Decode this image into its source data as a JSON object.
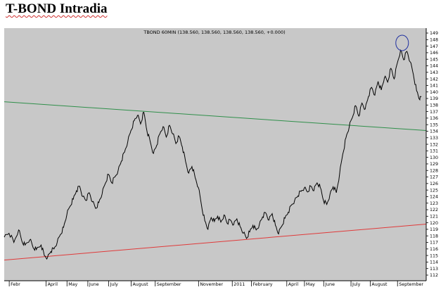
{
  "page": {
    "title": "T-BOND Intradia"
  },
  "chart_data": {
    "type": "line",
    "title": "TBOND 60MIN (138.560, 138.560, 138.560, 138.560, +0.000)",
    "symbol": "TBOND",
    "interval": "60MIN",
    "ylim": [
      112,
      149
    ],
    "y_ticks": [
      "112",
      "113",
      "114",
      "115",
      "116",
      "117",
      "118",
      "119",
      "120",
      "121",
      "122",
      "123",
      "124",
      "125",
      "126",
      "127",
      "128",
      "129",
      "130",
      "131",
      "132",
      "133",
      "134",
      "135",
      "136",
      "137",
      "138",
      "139",
      "140",
      "141",
      "142",
      "143",
      "144",
      "145",
      "146",
      "147",
      "148",
      "149"
    ],
    "x_ticks": [
      {
        "label": "Febr",
        "t": 0.4
      },
      {
        "label": "April",
        "t": 2.7
      },
      {
        "label": "May",
        "t": 4.0
      },
      {
        "label": "June",
        "t": 5.3
      },
      {
        "label": "July",
        "t": 6.6
      },
      {
        "label": "August",
        "t": 8.0
      },
      {
        "label": "September",
        "t": 9.5
      },
      {
        "label": "November",
        "t": 12.2
      },
      {
        "label": "2011",
        "t": 14.3
      },
      {
        "label": "February",
        "t": 15.5
      },
      {
        "label": "April",
        "t": 17.7
      },
      {
        "label": "May",
        "t": 18.8
      },
      {
        "label": "June",
        "t": 20.0
      },
      {
        "label": "July",
        "t": 21.7
      },
      {
        "label": "August",
        "t": 22.9
      },
      {
        "label": "September",
        "t": 24.6
      }
    ],
    "x_range": [
      0,
      26.3
    ],
    "series": [
      {
        "color": "#000000",
        "points": [
          [
            0.0,
            117.8
          ],
          [
            0.3,
            118.4
          ],
          [
            0.6,
            117.0
          ],
          [
            0.9,
            118.9
          ],
          [
            1.1,
            117.2
          ],
          [
            1.3,
            116.6
          ],
          [
            1.6,
            117.4
          ],
          [
            1.8,
            116.2
          ],
          [
            2.0,
            115.9
          ],
          [
            2.3,
            116.6
          ],
          [
            2.5,
            115.0
          ],
          [
            2.7,
            114.7
          ],
          [
            2.9,
            115.6
          ],
          [
            3.1,
            116.0
          ],
          [
            3.3,
            117.0
          ],
          [
            3.5,
            118.2
          ],
          [
            3.7,
            119.3
          ],
          [
            3.9,
            121.2
          ],
          [
            4.1,
            122.5
          ],
          [
            4.3,
            123.6
          ],
          [
            4.5,
            124.9
          ],
          [
            4.7,
            125.6
          ],
          [
            4.9,
            124.0
          ],
          [
            5.1,
            123.4
          ],
          [
            5.3,
            124.6
          ],
          [
            5.5,
            123.2
          ],
          [
            5.7,
            122.2
          ],
          [
            5.9,
            123.1
          ],
          [
            6.1,
            124.4
          ],
          [
            6.3,
            126.0
          ],
          [
            6.5,
            127.4
          ],
          [
            6.7,
            126.1
          ],
          [
            6.9,
            127.0
          ],
          [
            7.1,
            128.0
          ],
          [
            7.3,
            129.4
          ],
          [
            7.5,
            130.8
          ],
          [
            7.7,
            132.4
          ],
          [
            7.9,
            134.1
          ],
          [
            8.1,
            135.6
          ],
          [
            8.3,
            136.4
          ],
          [
            8.5,
            135.1
          ],
          [
            8.7,
            136.9
          ],
          [
            8.9,
            134.0
          ],
          [
            9.1,
            132.4
          ],
          [
            9.3,
            130.6
          ],
          [
            9.5,
            131.8
          ],
          [
            9.7,
            133.6
          ],
          [
            9.9,
            134.7
          ],
          [
            10.1,
            133.1
          ],
          [
            10.3,
            134.9
          ],
          [
            10.5,
            133.6
          ],
          [
            10.7,
            132.1
          ],
          [
            10.9,
            133.2
          ],
          [
            11.1,
            131.6
          ],
          [
            11.3,
            129.4
          ],
          [
            11.5,
            127.6
          ],
          [
            11.7,
            128.6
          ],
          [
            11.9,
            126.9
          ],
          [
            12.1,
            125.4
          ],
          [
            12.3,
            122.6
          ],
          [
            12.5,
            120.3
          ],
          [
            12.7,
            119.0
          ],
          [
            12.9,
            120.8
          ],
          [
            13.1,
            120.2
          ],
          [
            13.3,
            121.0
          ],
          [
            13.5,
            120.1
          ],
          [
            13.7,
            121.2
          ],
          [
            13.9,
            119.9
          ],
          [
            14.1,
            120.4
          ],
          [
            14.3,
            119.7
          ],
          [
            14.5,
            120.6
          ],
          [
            14.7,
            119.4
          ],
          [
            14.9,
            118.4
          ],
          [
            15.1,
            117.6
          ],
          [
            15.3,
            118.6
          ],
          [
            15.5,
            119.6
          ],
          [
            15.7,
            118.9
          ],
          [
            15.9,
            119.7
          ],
          [
            16.1,
            120.9
          ],
          [
            16.3,
            121.5
          ],
          [
            16.5,
            120.4
          ],
          [
            16.7,
            121.4
          ],
          [
            16.9,
            119.6
          ],
          [
            17.1,
            118.3
          ],
          [
            17.3,
            119.5
          ],
          [
            17.5,
            120.7
          ],
          [
            17.7,
            121.6
          ],
          [
            17.9,
            122.7
          ],
          [
            18.1,
            123.4
          ],
          [
            18.3,
            124.1
          ],
          [
            18.5,
            124.8
          ],
          [
            18.7,
            125.3
          ],
          [
            18.9,
            124.7
          ],
          [
            19.1,
            125.6
          ],
          [
            19.3,
            124.9
          ],
          [
            19.5,
            126.1
          ],
          [
            19.7,
            125.4
          ],
          [
            19.9,
            123.4
          ],
          [
            20.1,
            122.8
          ],
          [
            20.3,
            124.3
          ],
          [
            20.5,
            125.5
          ],
          [
            20.7,
            124.6
          ],
          [
            20.9,
            127.4
          ],
          [
            21.1,
            130.5
          ],
          [
            21.3,
            133.0
          ],
          [
            21.5,
            134.6
          ],
          [
            21.7,
            136.1
          ],
          [
            21.9,
            137.9
          ],
          [
            22.1,
            136.3
          ],
          [
            22.3,
            138.3
          ],
          [
            22.5,
            137.4
          ],
          [
            22.7,
            139.3
          ],
          [
            22.9,
            140.7
          ],
          [
            23.1,
            139.5
          ],
          [
            23.3,
            141.6
          ],
          [
            23.5,
            140.3
          ],
          [
            23.7,
            142.2
          ],
          [
            23.9,
            141.5
          ],
          [
            24.1,
            143.6
          ],
          [
            24.3,
            142.0
          ],
          [
            24.5,
            144.4
          ],
          [
            24.7,
            146.4
          ],
          [
            24.9,
            144.9
          ],
          [
            25.1,
            146.2
          ],
          [
            25.3,
            144.6
          ],
          [
            25.5,
            142.7
          ],
          [
            25.7,
            140.2
          ],
          [
            25.9,
            138.8
          ],
          [
            26.0,
            139.3
          ]
        ]
      }
    ],
    "trendlines": [
      {
        "name": "resistance",
        "color": "#2f8f4a",
        "from": [
          0,
          138.5
        ],
        "to": [
          26.3,
          134.1
        ]
      },
      {
        "name": "support",
        "color": "#e03a3a",
        "from": [
          0,
          114.3
        ],
        "to": [
          26.3,
          119.8
        ]
      }
    ],
    "annotations": [
      {
        "type": "circle",
        "color": "#2030a0",
        "at": [
          24.8,
          147.5
        ]
      }
    ],
    "grid": false,
    "background": "#c8c8c8"
  }
}
